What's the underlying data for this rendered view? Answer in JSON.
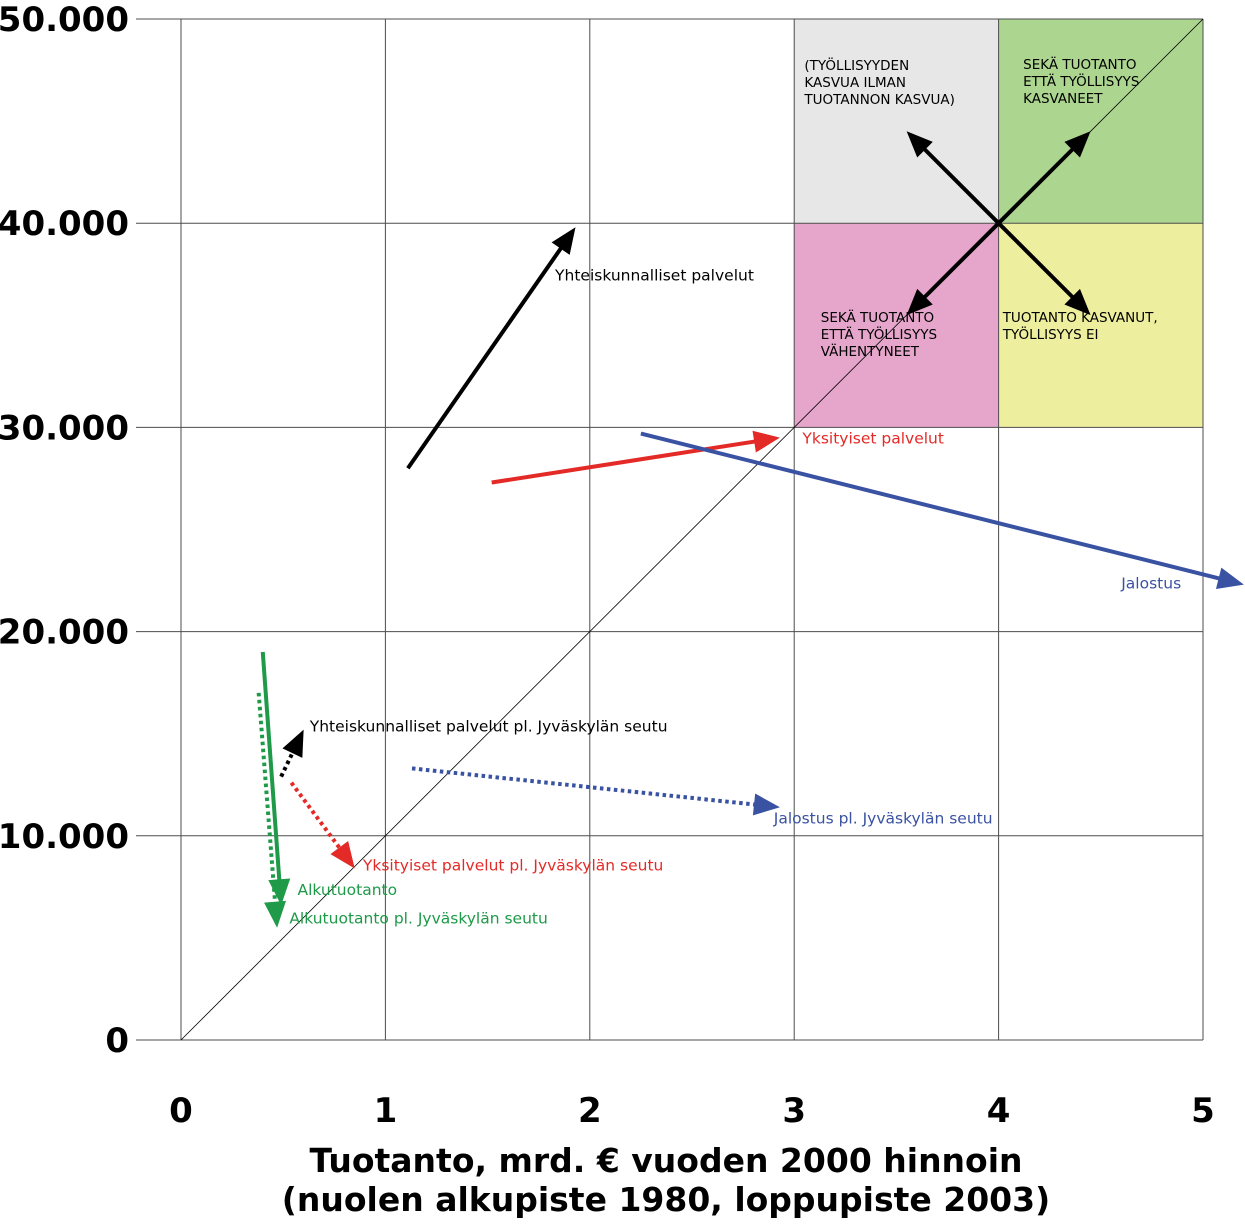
{
  "chart_data": {
    "type": "arrow-scatter",
    "title": "",
    "xlabel": "Tuotanto, mrd. € vuoden 2000 hinnoin",
    "xlabel_sub": "(nuolen alkupiste 1980, loppupiste 2003)",
    "ylabel": "",
    "xlim": [
      0,
      5
    ],
    "ylim": [
      0,
      50000
    ],
    "grid": true,
    "x_ticks": [
      {
        "value": 0,
        "label": "0"
      },
      {
        "value": 1,
        "label": "1"
      },
      {
        "value": 2,
        "label": "2"
      },
      {
        "value": 3,
        "label": "3"
      },
      {
        "value": 4,
        "label": "4"
      },
      {
        "value": 5,
        "label": "5"
      }
    ],
    "y_ticks": [
      {
        "value": 0,
        "label": "0"
      },
      {
        "value": 10000,
        "label": "10.000"
      },
      {
        "value": 20000,
        "label": "20.000"
      },
      {
        "value": 30000,
        "label": "30.000"
      },
      {
        "value": 40000,
        "label": "40.000"
      },
      {
        "value": 50000,
        "label": "50.000"
      }
    ],
    "reference_line": {
      "from": [
        0,
        0
      ],
      "to": [
        5,
        50000
      ]
    },
    "quadrants": [
      {
        "x": [
          3,
          4
        ],
        "y": [
          40000,
          50000
        ],
        "color": "#e6e7e6",
        "lines": [
          "(TYÖLLISYYDEN",
          "KASVUA ILMAN",
          "TUOTANNON KASVUA)"
        ],
        "label_at": [
          3.05,
          47500
        ]
      },
      {
        "x": [
          4,
          5
        ],
        "y": [
          40000,
          50000
        ],
        "color": "#acd58f",
        "lines": [
          "SEKÄ TUOTANTO",
          "ETTÄ TYÖLLISYYS",
          "KASVANEET"
        ],
        "label_at": [
          4.12,
          47550
        ]
      },
      {
        "x": [
          3,
          4
        ],
        "y": [
          30000,
          40000
        ],
        "color": "#e6a6cb",
        "lines": [
          "SEKÄ TUOTANTO",
          "ETTÄ TYÖLLISYYS",
          "VÄHENTYNEET"
        ],
        "label_at": [
          3.13,
          35150
        ]
      },
      {
        "x": [
          4,
          5
        ],
        "y": [
          30000,
          40000
        ],
        "color": "#eeef9e",
        "lines": [
          "TUOTANTO KASVANUT,",
          "TYÖLLISYYS EI"
        ],
        "label_at": [
          4.02,
          35150
        ]
      }
    ],
    "legend_arrows": {
      "center": [
        4,
        40000
      ],
      "color": "#000000",
      "targets": [
        [
          3.55,
          44500
        ],
        [
          4.45,
          44500
        ],
        [
          3.55,
          35500
        ],
        [
          4.45,
          35500
        ]
      ]
    },
    "series": [
      {
        "name": "Yhteiskunnalliset palvelut",
        "color": "#000000",
        "dashed": false,
        "start": [
          1.11,
          28000
        ],
        "end": [
          1.93,
          39800
        ],
        "label_at": [
          1.83,
          37200
        ]
      },
      {
        "name": "Yksityiset palvelut",
        "color": "#e42a27",
        "dashed": false,
        "start": [
          1.52,
          27300
        ],
        "end": [
          2.93,
          29500
        ],
        "label_at": [
          3.04,
          29200
        ]
      },
      {
        "name": "Jalostus",
        "color": "#3a52a2",
        "dashed": false,
        "start": [
          2.25,
          29700
        ],
        "end": [
          5.2,
          22300
        ],
        "label_at": [
          4.6,
          22100
        ]
      },
      {
        "name": "Alkutuotanto",
        "color": "#1e9a48",
        "dashed": false,
        "start": [
          0.4,
          19000
        ],
        "end": [
          0.49,
          6600
        ],
        "label_at": [
          0.57,
          7100
        ]
      },
      {
        "name": "Yhteiskunnalliset palvelut pl. Jyväskylän seutu",
        "color": "#000000",
        "dashed": true,
        "start": [
          0.49,
          12900
        ],
        "end": [
          0.6,
          15200
        ],
        "label_at": [
          0.63,
          15100
        ]
      },
      {
        "name": "Yksityiset palvelut pl. Jyväskylän seutu",
        "color": "#e42a27",
        "dashed": true,
        "start": [
          0.54,
          12600
        ],
        "end": [
          0.85,
          8400
        ],
        "label_at": [
          0.89,
          8300
        ]
      },
      {
        "name": "Jalostus pl. Jyväskylän seutu",
        "color": "#3a52a2",
        "dashed": true,
        "start": [
          1.13,
          13300
        ],
        "end": [
          2.93,
          11400
        ],
        "label_at": [
          2.9,
          10600
        ]
      },
      {
        "name": "Alkutuotanto pl. Jyväskylän seutu",
        "color": "#1e9a48",
        "dashed": true,
        "start": [
          0.38,
          17000
        ],
        "end": [
          0.47,
          5500
        ],
        "label_at": [
          0.53,
          5700
        ]
      }
    ]
  }
}
